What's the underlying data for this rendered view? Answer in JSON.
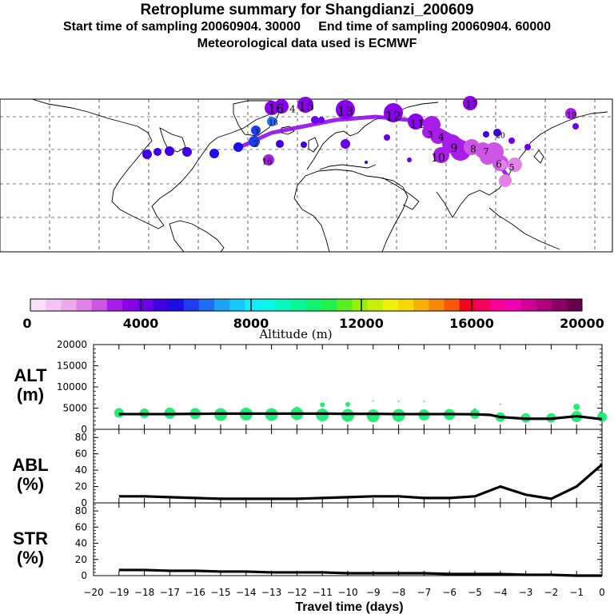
{
  "header": {
    "title": "Retroplume summary for Shangdianzi_200609",
    "line2": "Start time of sampling 20060904. 30000     End time of sampling 20060904. 60000",
    "line3": "Meteorological data used is ECMWF"
  },
  "colors": {
    "colorbar": [
      "#fbe0fb",
      "#f6c3f6",
      "#eeaaee",
      "#e383e8",
      "#cc55e6",
      "#a81ee8",
      "#8a00ea",
      "#6a00ea",
      "#3e00e0",
      "#1a0ee6",
      "#1c3cf0",
      "#1e6ef4",
      "#1ea0f8",
      "#16c8fc",
      "#10ecfc",
      "#08f8e8",
      "#08f8c0",
      "#08f898",
      "#10f470",
      "#20f048",
      "#58f020",
      "#98f008",
      "#c8f008",
      "#f0f008",
      "#f8d808",
      "#f8b008",
      "#f88808",
      "#f85808",
      "#f80020",
      "#f80060",
      "#f80098",
      "#f000b4",
      "#d00098",
      "#b0007e",
      "#8c0066",
      "#6a004c"
    ],
    "alt_dots": "#22ee77",
    "line": "#000000"
  },
  "colorbar": {
    "label": "Altitude (m)",
    "ticks": [
      "0",
      "4000",
      "8000",
      "12000",
      "16000",
      "20000"
    ]
  },
  "map": {
    "day_labels": [
      "16",
      "4",
      "15",
      "13",
      "12",
      "11",
      "17",
      "16",
      "10",
      "9",
      "8",
      "7",
      "6",
      "5",
      "4",
      "3",
      "2",
      "1",
      "18",
      "19",
      "20"
    ]
  },
  "chart_data": [
    {
      "type": "scatter+line",
      "panel": "ALT",
      "ylabel": "ALT (m)",
      "ylabel_lines": [
        "ALT",
        "(m)"
      ],
      "ylim": [
        0,
        20000
      ],
      "yticks": [
        "0",
        "5000",
        "10000",
        "15000",
        "20000"
      ],
      "x": [
        -19,
        -18,
        -17,
        -16,
        -15,
        -14,
        -13,
        -12,
        -11,
        -10,
        -9,
        -8,
        -7,
        -6,
        -5,
        -4.4,
        -4,
        -3,
        -2,
        -1,
        0
      ],
      "line_values": [
        3600,
        3600,
        3600,
        3650,
        3700,
        3700,
        3700,
        3700,
        3700,
        3650,
        3650,
        3600,
        3600,
        3600,
        3550,
        3400,
        2900,
        2500,
        2500,
        3100,
        2400
      ],
      "dots": [
        {
          "x": -19,
          "y": 3900,
          "s": 6
        },
        {
          "x": -18,
          "y": 3800,
          "s": 6
        },
        {
          "x": -17,
          "y": 3800,
          "s": 7
        },
        {
          "x": -16,
          "y": 3700,
          "s": 7
        },
        {
          "x": -15,
          "y": 3500,
          "s": 8
        },
        {
          "x": -14,
          "y": 3600,
          "s": 8
        },
        {
          "x": -13,
          "y": 3500,
          "s": 8
        },
        {
          "x": -12,
          "y": 3700,
          "s": 8
        },
        {
          "x": -11,
          "y": 3400,
          "s": 8
        },
        {
          "x": -10,
          "y": 3300,
          "s": 8
        },
        {
          "x": -9,
          "y": 3200,
          "s": 8
        },
        {
          "x": -8,
          "y": 3300,
          "s": 8
        },
        {
          "x": -7,
          "y": 3400,
          "s": 7
        },
        {
          "x": -6,
          "y": 3500,
          "s": 7
        },
        {
          "x": -5,
          "y": 3600,
          "s": 6
        },
        {
          "x": -4,
          "y": 2900,
          "s": 6
        },
        {
          "x": -3,
          "y": 2700,
          "s": 6
        },
        {
          "x": -2,
          "y": 2700,
          "s": 6
        },
        {
          "x": -1,
          "y": 3000,
          "s": 7
        },
        {
          "x": 0,
          "y": 2900,
          "s": 6
        },
        {
          "x": -12,
          "y": 4800,
          "s": 3
        },
        {
          "x": -11,
          "y": 5800,
          "s": 3
        },
        {
          "x": -10,
          "y": 5900,
          "s": 3
        },
        {
          "x": -9,
          "y": 6700,
          "s": 1
        },
        {
          "x": -8,
          "y": 6600,
          "s": 1
        },
        {
          "x": -7,
          "y": 6600,
          "s": 1
        },
        {
          "x": -4,
          "y": 5900,
          "s": 1
        },
        {
          "x": -1,
          "y": 5300,
          "s": 4
        },
        {
          "x": -5,
          "y": 4600,
          "s": 2
        }
      ]
    },
    {
      "type": "line",
      "panel": "ABL",
      "ylabel": "ABL (%)",
      "ylabel_lines": [
        "ABL",
        "(%)"
      ],
      "ylim": [
        0,
        90
      ],
      "yticks": [
        "0",
        "20",
        "40",
        "60",
        "80"
      ],
      "x": [
        -19,
        -18,
        -17,
        -16,
        -15,
        -14,
        -13,
        -12,
        -11,
        -10,
        -9,
        -8,
        -7,
        -6,
        -5,
        -4,
        -3,
        -2,
        -1,
        0
      ],
      "values": [
        8,
        8,
        7,
        6,
        5,
        5,
        5,
        5,
        6,
        7,
        8,
        8,
        6,
        6,
        8,
        20,
        10,
        5,
        20,
        47
      ]
    },
    {
      "type": "line",
      "panel": "STR",
      "ylabel": "STR (%)",
      "ylabel_lines": [
        "STR",
        "(%)"
      ],
      "ylim": [
        0,
        90
      ],
      "yticks": [
        "0",
        "20",
        "40",
        "60",
        "80"
      ],
      "x": [
        -19,
        -18,
        -17,
        -16,
        -15,
        -14,
        -13,
        -12,
        -11,
        -10,
        -9,
        -8,
        -7,
        -6,
        -5,
        -4,
        -3,
        -2,
        -1,
        0
      ],
      "values": [
        7,
        7,
        6,
        6,
        5,
        5,
        4,
        4,
        4,
        3,
        3,
        3,
        3,
        2,
        2,
        2,
        1,
        1,
        0,
        0
      ]
    }
  ],
  "xaxis": {
    "label": "Travel time (days)",
    "ticks": [
      "−20",
      "−19",
      "−18",
      "−17",
      "−16",
      "−15",
      "−14",
      "−13",
      "−12",
      "−11",
      "−10",
      "−9",
      "−8",
      "−7",
      "−6",
      "−5",
      "−4",
      "−3",
      "−2",
      "−1",
      "0"
    ],
    "values": [
      -20,
      -19,
      -18,
      -17,
      -16,
      -15,
      -14,
      -13,
      -12,
      -11,
      -10,
      -9,
      -8,
      -7,
      -6,
      -5,
      -4,
      -3,
      -2,
      -1,
      0
    ]
  }
}
